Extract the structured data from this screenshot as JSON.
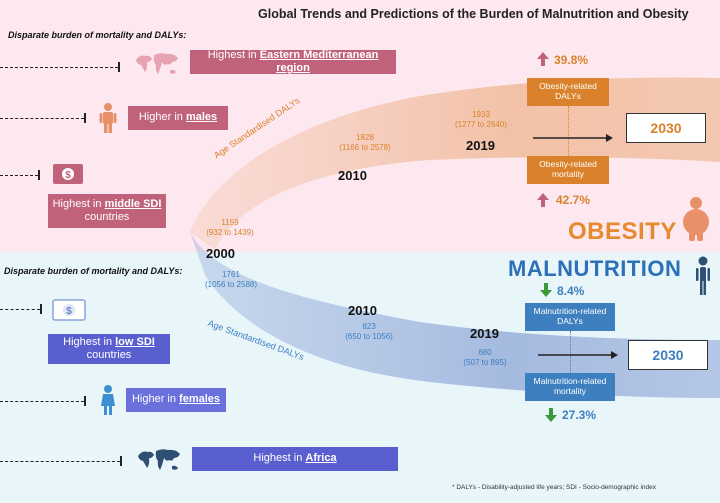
{
  "title": "Global Trends and Predictions of the Burden of Malnutrition and Obesity",
  "obesity_section": {
    "heading": "Disparate burden of mortality and DALYs:",
    "items": [
      {
        "prefix": "Highest in ",
        "highlight": "Eastern Mediterranean region",
        "suffix": ""
      },
      {
        "prefix": "Higher in ",
        "highlight": "males",
        "suffix": ""
      },
      {
        "prefix": "Highest in ",
        "highlight": "middle SDI",
        "suffix": " countries"
      }
    ]
  },
  "malnutrition_section": {
    "heading": "Disparate burden of mortality and DALYs:",
    "items": [
      {
        "prefix": "Highest in ",
        "highlight": "low SDI",
        "suffix": " countries"
      },
      {
        "prefix": "Higher in ",
        "highlight": "females",
        "suffix": ""
      },
      {
        "prefix": "Highest in ",
        "highlight": "Africa",
        "suffix": ""
      }
    ]
  },
  "obesity_curve": {
    "label": "Age Standardised DALYs",
    "points": [
      {
        "year": "2000",
        "value": "1159",
        "range": "(932 to 1439)"
      },
      {
        "year": "2010",
        "value": "1828",
        "range": "(1166 to 2578)"
      },
      {
        "year": "2019",
        "value": "1933",
        "range": "(1277 to 2640)"
      }
    ],
    "dalys_box": "Obesity-related DALYs",
    "mortality_box": "Obesity-related mortality",
    "dalys_change": "39.8%",
    "mortality_change": "42.7%",
    "projection_year": "2030",
    "name": "OBESITY"
  },
  "malnutrition_curve": {
    "label": "Age Standardised DALYs",
    "points": [
      {
        "year": "2000",
        "value": "1761",
        "range": "(1056 to 2588)"
      },
      {
        "year": "2010",
        "value": "823",
        "range": "(650 to 1056)"
      },
      {
        "year": "2019",
        "value": "680",
        "range": "(507 to 895)"
      }
    ],
    "dalys_box": "Malnutrition-related DALYs",
    "mortality_box": "Malnutrition-related mortality",
    "dalys_change": "8.4%",
    "mortality_change": "27.3%",
    "projection_year": "2030",
    "name": "MALNUTRITION"
  },
  "footnote": "* DALYs - Disability-adjusted life years; SDI - Socio-demographic index",
  "colors": {
    "obesity": "#d9822b",
    "malnutrition": "#3d7fbf",
    "pink_box": "#c0627a",
    "blue_box": "#5a5fd0",
    "pink_bg": "#fde8ef",
    "blue_bg": "#e8f6fa"
  }
}
